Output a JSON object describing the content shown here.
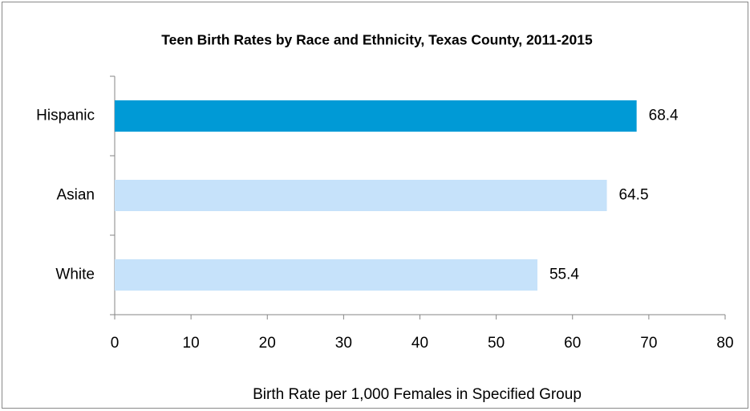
{
  "chart_data": {
    "type": "bar",
    "orientation": "horizontal",
    "title": "Teen Birth Rates by Race and Ethnicity, Texas County, 2011-2015",
    "x_label": "Birth Rate per 1,000 Females in Specified Group",
    "categories": [
      "Hispanic",
      "Asian",
      "White"
    ],
    "values": [
      68.4,
      64.5,
      55.4
    ],
    "colors": [
      "#009ad6",
      "#c6e2fa",
      "#c6e2fa"
    ],
    "xlim": [
      0,
      80
    ],
    "xticks": [
      0,
      10,
      20,
      30,
      40,
      50,
      60,
      70,
      80
    ],
    "grid": false
  }
}
